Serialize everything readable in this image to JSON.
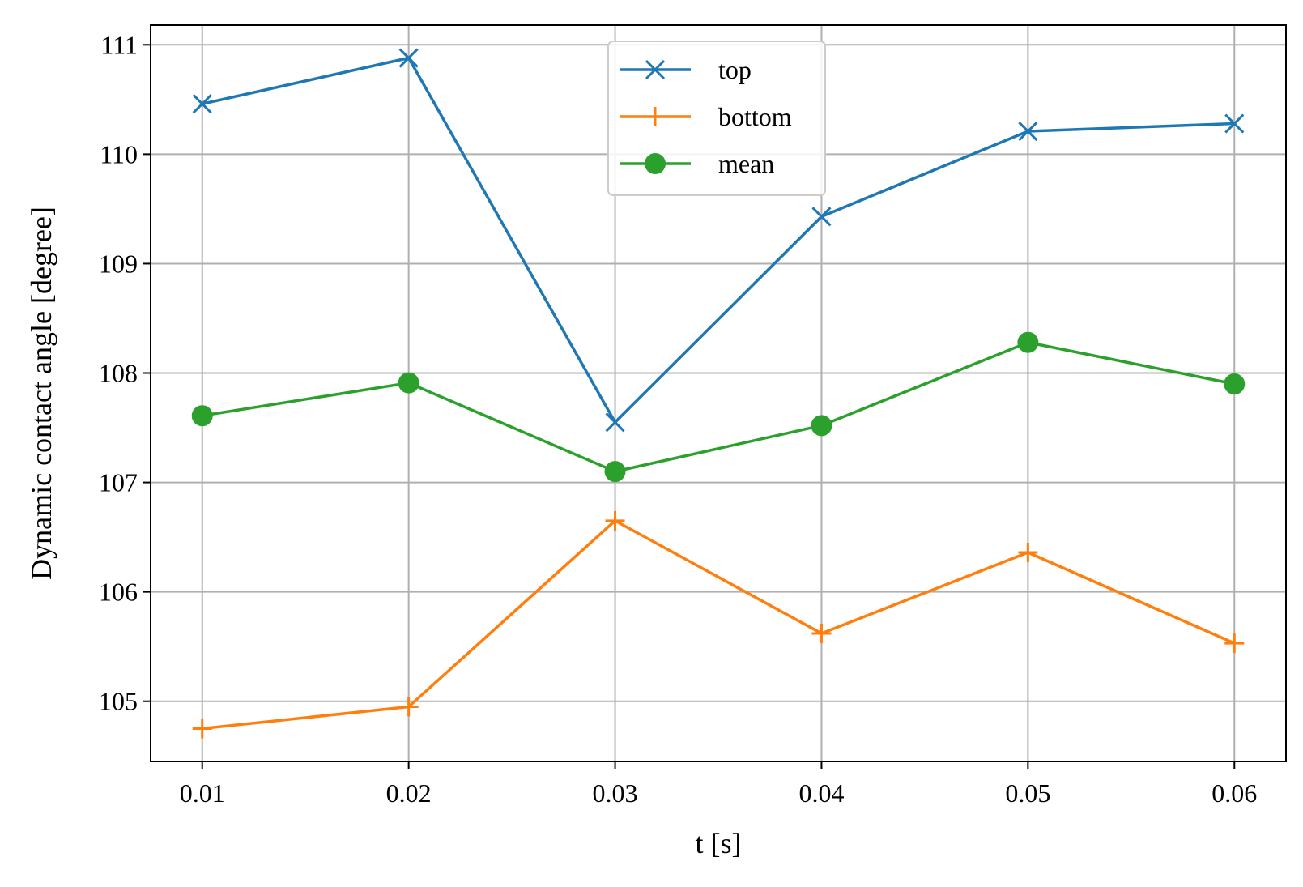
{
  "chart_data": {
    "type": "line",
    "xlabel": "t [s]",
    "ylabel": "Dynamic contact angle [degree]",
    "x": [
      0.01,
      0.02,
      0.03,
      0.04,
      0.05,
      0.06
    ],
    "x_tick_labels": [
      "0.01",
      "0.02",
      "0.03",
      "0.04",
      "0.05",
      "0.06"
    ],
    "y_ticks": [
      105,
      106,
      107,
      108,
      109,
      110,
      111
    ],
    "y_tick_labels": [
      "105",
      "106",
      "107",
      "108",
      "109",
      "110",
      "111"
    ],
    "xlim": [
      0.0075,
      0.0625
    ],
    "ylim": [
      104.45,
      111.18
    ],
    "grid": true,
    "legend_position": "upper center",
    "series": [
      {
        "name": "top",
        "color": "#1f77b4",
        "marker": "x",
        "values": [
          110.46,
          110.88,
          107.55,
          109.43,
          110.21,
          110.28
        ]
      },
      {
        "name": "bottom",
        "color": "#ff7f0e",
        "marker": "+",
        "values": [
          104.75,
          104.95,
          106.65,
          105.62,
          106.36,
          105.53
        ]
      },
      {
        "name": "mean",
        "color": "#2ca02c",
        "marker": "o",
        "values": [
          107.61,
          107.91,
          107.1,
          107.52,
          108.28,
          107.9
        ]
      }
    ]
  }
}
